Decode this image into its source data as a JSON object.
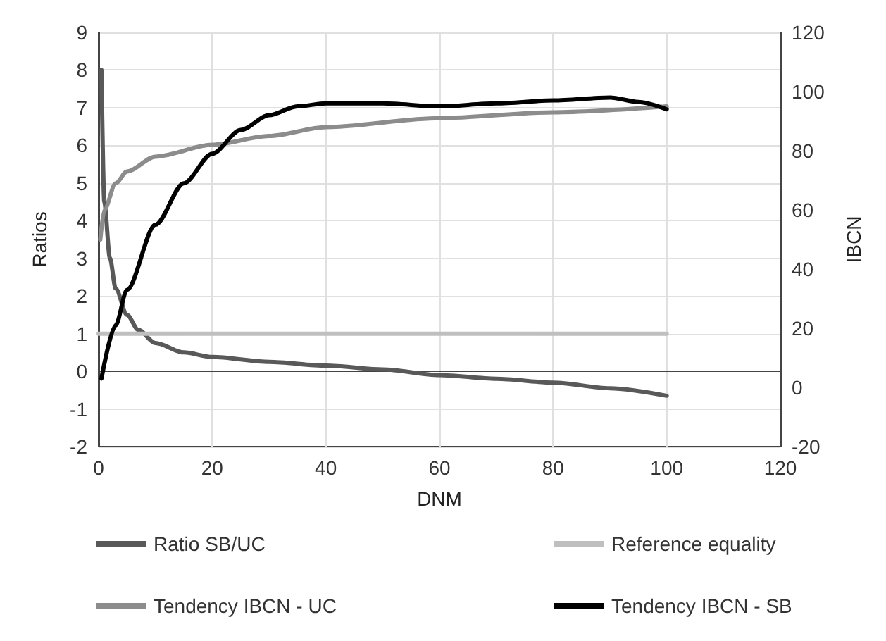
{
  "chart_data": {
    "type": "line",
    "xlabel": "DNM",
    "ylabel": "Ratios",
    "y2label": "IBCN",
    "xlim": [
      0,
      120
    ],
    "xticks": [
      0,
      20,
      40,
      60,
      80,
      100,
      120
    ],
    "ylim": [
      -2,
      9
    ],
    "yticks": [
      -2,
      -1,
      0,
      1,
      2,
      3,
      4,
      5,
      6,
      7,
      8,
      9
    ],
    "y2lim": [
      -20,
      120
    ],
    "y2ticks": [
      -20,
      0,
      20,
      40,
      60,
      80,
      100,
      120
    ],
    "grid": true,
    "legend": "bottom",
    "marker": "none",
    "line_style": "solid",
    "series": [
      {
        "name": "Ratio SB/UC",
        "color": "#595959",
        "x": [
          0.5,
          1,
          2,
          3,
          5,
          7,
          10,
          15,
          20,
          30,
          40,
          50,
          60,
          70,
          80,
          90,
          100
        ],
        "values": [
          8.0,
          4.5,
          3.0,
          2.2,
          1.5,
          1.1,
          0.75,
          0.5,
          0.38,
          0.25,
          0.15,
          0.05,
          -0.1,
          -0.2,
          -0.3,
          -0.45,
          -0.65
        ]
      },
      {
        "name": "Reference equality",
        "color": "#bfbfbf",
        "x": [
          0,
          100
        ],
        "values": [
          1,
          1
        ]
      },
      {
        "name": "Tendency IBCN - UC",
        "color": "#8c8c8c",
        "axis": "y2",
        "x": [
          0.3,
          1,
          3,
          5,
          10,
          20,
          30,
          40,
          60,
          80,
          100
        ],
        "values": [
          50,
          60,
          69,
          73,
          78,
          82,
          85,
          88,
          91,
          93,
          95
        ]
      },
      {
        "name": "Tendency IBCN - SB",
        "color": "#000000",
        "axis": "y2",
        "x": [
          0.5,
          3,
          5,
          10,
          15,
          20,
          25,
          30,
          35,
          40,
          50,
          60,
          70,
          80,
          90,
          95,
          100
        ],
        "values": [
          3,
          21,
          33,
          55,
          69,
          79,
          87,
          92,
          95,
          96,
          96,
          95,
          96,
          97,
          98,
          96.5,
          94
        ]
      }
    ]
  }
}
